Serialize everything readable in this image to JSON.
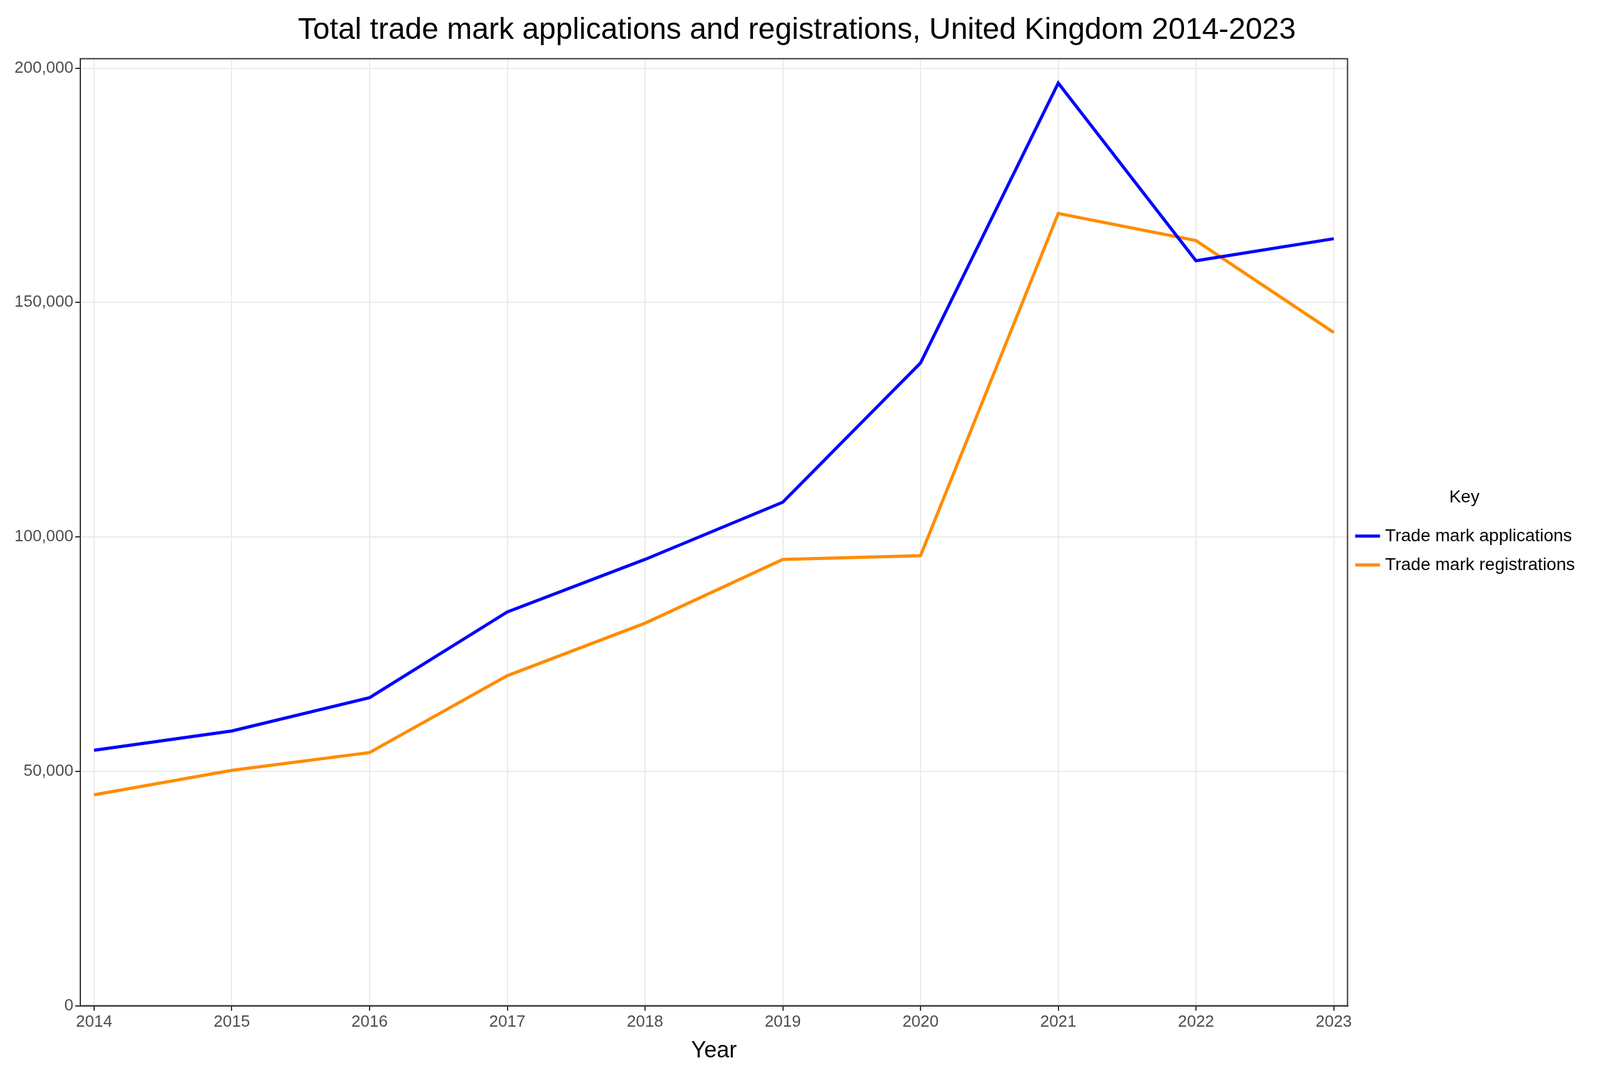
{
  "chart_data": {
    "type": "line",
    "title": "Total trade mark applications and registrations, United Kingdom 2014-2023",
    "x_label": "Year",
    "legend_title": "Key",
    "legend": "right",
    "grid": true,
    "x": [
      2014,
      2015,
      2016,
      2017,
      2018,
      2019,
      2020,
      2021,
      2022,
      2023
    ],
    "xlim": [
      2013.9,
      2023.1
    ],
    "xticks": [
      2014,
      2015,
      2016,
      2017,
      2018,
      2019,
      2020,
      2021,
      2022,
      2023
    ],
    "ylim": [
      0,
      202000
    ],
    "yticks": [
      0,
      {
        "value": 50000,
        "label": "50,000"
      },
      {
        "value": 100000,
        "label": "100,000"
      },
      {
        "value": 150000,
        "label": "150,000"
      },
      {
        "value": 200000,
        "label": "200,000"
      }
    ],
    "series": [
      {
        "name": "Trade mark applications",
        "color": "#0000ff",
        "line_style": "solid",
        "values": [
          54500,
          58600,
          65700,
          84000,
          95200,
          107400,
          137100,
          196800,
          158900,
          163600
        ]
      },
      {
        "name": "Trade mark registrations",
        "color": "#ff8c00",
        "line_style": "solid",
        "values": [
          45000,
          50200,
          54000,
          70400,
          81600,
          95200,
          96000,
          169000,
          163200,
          143600
        ]
      }
    ]
  }
}
